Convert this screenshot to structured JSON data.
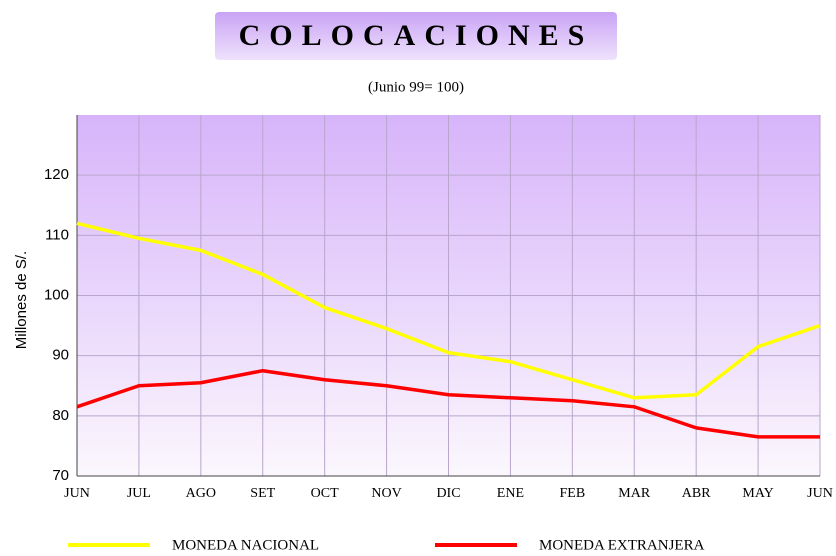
{
  "chart_data": {
    "type": "line",
    "title": "COLOCACIONES",
    "subtitle": "(Junio 99= 100)",
    "y_label": "Millones de S/.",
    "categories": [
      "JUN",
      "JUL",
      "AGO",
      "SET",
      "OCT",
      "NOV",
      "DIC",
      "ENE",
      "FEB",
      "MAR",
      "ABR",
      "MAY",
      "JUN"
    ],
    "series": [
      {
        "name": "MONEDA NACIONAL",
        "color": "#ffff00",
        "values": [
          112,
          109.5,
          107.5,
          103.5,
          98,
          94.5,
          90.5,
          89,
          86,
          83,
          83.5,
          91.5,
          95
        ]
      },
      {
        "name": "MONEDA EXTRANJERA",
        "color": "#ff0000",
        "values": [
          81.5,
          85,
          85.5,
          87.5,
          86,
          85,
          83.5,
          83,
          82.5,
          81.5,
          78,
          76.5,
          76.5
        ]
      }
    ],
    "ylim": [
      70,
      130
    ],
    "yticks": [
      70,
      80,
      90,
      100,
      110,
      120
    ],
    "grid": true
  }
}
